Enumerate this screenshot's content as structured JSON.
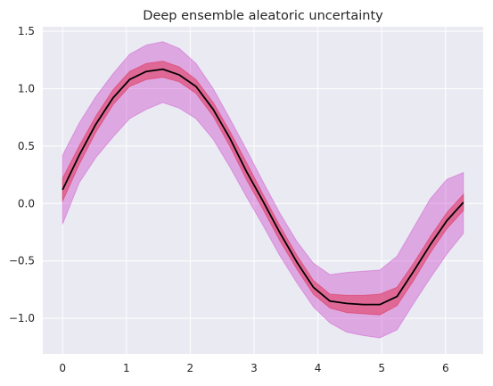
{
  "chart_data": {
    "type": "area",
    "title": "Deep ensemble aleatoric uncertainty",
    "xlabel": "",
    "ylabel": "",
    "xlim": [
      -0.31,
      6.59
    ],
    "ylim": [
      -1.31,
      1.54
    ],
    "grid": true,
    "background": "#eaeaf2",
    "grid_color": "#ffffff",
    "x_ticks": [
      0,
      1,
      2,
      3,
      4,
      5,
      6
    ],
    "x_tick_labels": [
      "0",
      "1",
      "2",
      "3",
      "4",
      "5",
      "6"
    ],
    "y_ticks": [
      -1.0,
      -0.5,
      0.0,
      0.5,
      1.0,
      1.5
    ],
    "y_tick_labels": [
      "−1.0",
      "−0.5",
      "0.0",
      "0.5",
      "1.0",
      "1.5"
    ],
    "x": [
      0.0,
      0.26,
      0.52,
      0.79,
      1.05,
      1.31,
      1.57,
      1.83,
      2.09,
      2.36,
      2.62,
      2.88,
      3.14,
      3.4,
      3.67,
      3.93,
      4.19,
      4.45,
      4.71,
      4.97,
      5.24,
      5.5,
      5.76,
      6.02,
      6.28
    ],
    "series": [
      {
        "type": "band",
        "color": "#c83cc8",
        "opacity": 0.38,
        "lower": [
          -0.18,
          0.18,
          0.4,
          0.58,
          0.74,
          0.82,
          0.88,
          0.83,
          0.74,
          0.56,
          0.32,
          0.06,
          -0.19,
          -0.45,
          -0.69,
          -0.9,
          -1.04,
          -1.12,
          -1.15,
          -1.17,
          -1.1,
          -0.87,
          -0.65,
          -0.44,
          -0.26
        ],
        "upper": [
          0.42,
          0.7,
          0.93,
          1.13,
          1.3,
          1.38,
          1.41,
          1.35,
          1.22,
          1.0,
          0.74,
          0.47,
          0.19,
          -0.08,
          -0.33,
          -0.52,
          -0.62,
          -0.6,
          -0.59,
          -0.58,
          -0.46,
          -0.21,
          0.04,
          0.21,
          0.27
        ]
      },
      {
        "type": "band",
        "color": "#e0335a",
        "opacity": 0.55,
        "lower": [
          0.02,
          0.34,
          0.62,
          0.86,
          1.02,
          1.08,
          1.1,
          1.06,
          0.96,
          0.76,
          0.5,
          0.21,
          -0.05,
          -0.32,
          -0.57,
          -0.79,
          -0.91,
          -0.95,
          -0.96,
          -0.97,
          -0.89,
          -0.67,
          -0.43,
          -0.22,
          -0.06
        ],
        "upper": [
          0.22,
          0.5,
          0.76,
          0.99,
          1.15,
          1.22,
          1.24,
          1.19,
          1.08,
          0.88,
          0.63,
          0.36,
          0.08,
          -0.19,
          -0.45,
          -0.67,
          -0.79,
          -0.8,
          -0.8,
          -0.79,
          -0.73,
          -0.52,
          -0.29,
          -0.08,
          0.08
        ]
      },
      {
        "type": "line",
        "color": "#000000",
        "y": [
          0.12,
          0.42,
          0.69,
          0.92,
          1.08,
          1.15,
          1.17,
          1.12,
          1.02,
          0.82,
          0.57,
          0.28,
          0.02,
          -0.25,
          -0.51,
          -0.73,
          -0.85,
          -0.87,
          -0.88,
          -0.88,
          -0.81,
          -0.59,
          -0.36,
          -0.15,
          0.01
        ]
      }
    ]
  }
}
